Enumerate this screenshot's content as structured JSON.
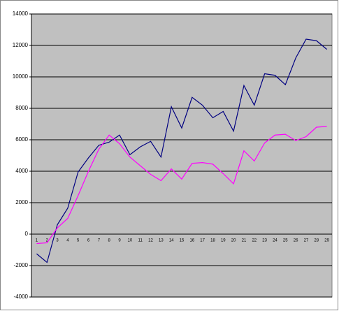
{
  "chart_data": {
    "type": "line",
    "categories": [
      "1",
      "2",
      "3",
      "4",
      "5",
      "6",
      "7",
      "8",
      "9",
      "10",
      "11",
      "12",
      "13",
      "14",
      "15",
      "16",
      "17",
      "18",
      "19",
      "20",
      "21",
      "22",
      "23",
      "24",
      "25",
      "26",
      "27",
      "28",
      "29"
    ],
    "series": [
      {
        "color": "#000080",
        "values": [
          -1250,
          -1800,
          600,
          1650,
          3950,
          4850,
          5650,
          5850,
          6300,
          5050,
          5550,
          5900,
          4900,
          8100,
          6750,
          8700,
          8200,
          7400,
          7800,
          6550,
          9450,
          8200,
          10200,
          10100,
          9500,
          11200,
          12400,
          12300,
          11750
        ]
      },
      {
        "color": "#ff00ff",
        "values": [
          -600,
          -550,
          400,
          1000,
          2450,
          4000,
          5400,
          6300,
          5750,
          4900,
          4350,
          3800,
          3400,
          4150,
          3500,
          4500,
          4550,
          4450,
          3850,
          3200,
          5300,
          4650,
          5800,
          6300,
          6350,
          5950,
          6200,
          6800,
          6850
        ]
      }
    ],
    "ylim": [
      -4000,
      14000
    ],
    "yticks": [
      -4000,
      -2000,
      0,
      2000,
      4000,
      6000,
      8000,
      10000,
      12000,
      14000
    ],
    "grid": true,
    "plot_background": "#c0c0c0"
  }
}
